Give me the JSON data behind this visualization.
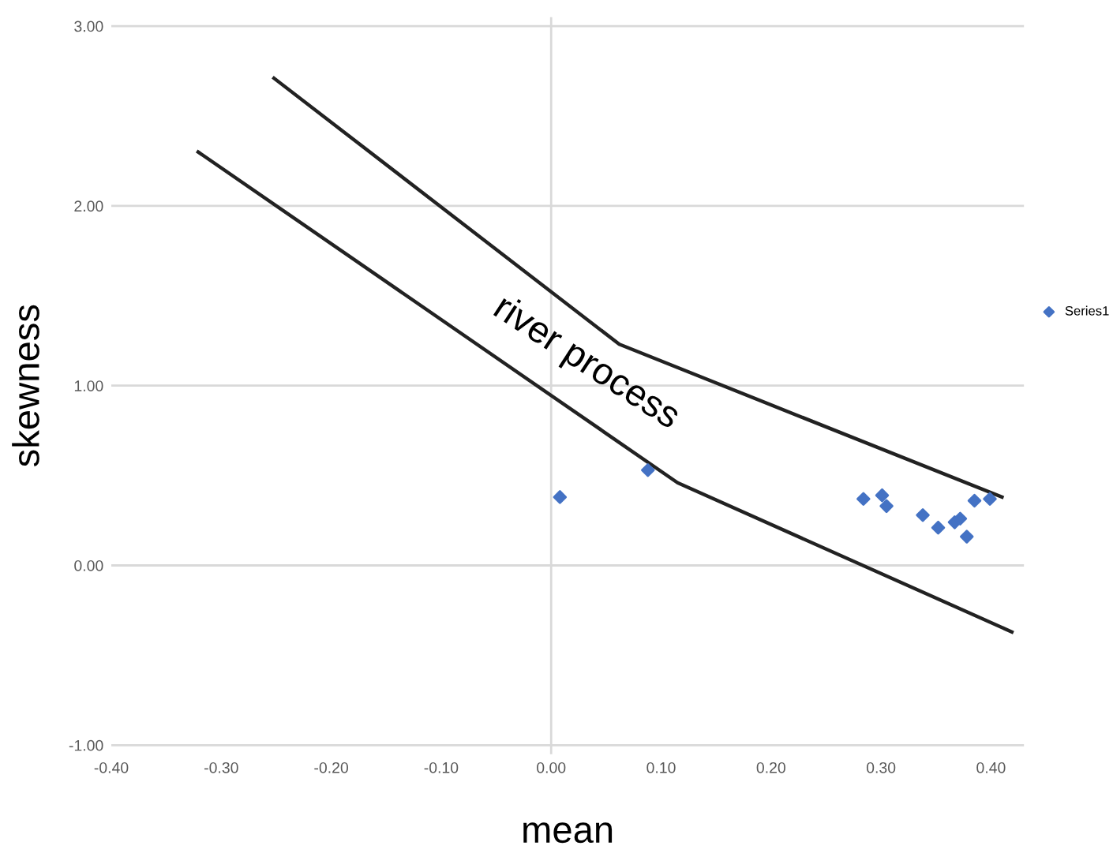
{
  "chart_data": {
    "type": "scatter",
    "xlabel": "mean",
    "ylabel": "skewness",
    "series": [
      {
        "name": "Series1",
        "color": "#4472c4",
        "marker": "diamond",
        "x": [
          0.008,
          0.088,
          0.284,
          0.301,
          0.305,
          0.338,
          0.352,
          0.367,
          0.372,
          0.378,
          0.385,
          0.399
        ],
        "values": [
          0.38,
          0.53,
          0.37,
          0.39,
          0.33,
          0.28,
          0.21,
          0.24,
          0.26,
          0.16,
          0.36,
          0.37
        ]
      },
      {
        "color": "#222222",
        "type": "line",
        "marker": "none",
        "x": [
          -0.252,
          0.062,
          0.41
        ],
        "values": [
          2.71,
          1.23,
          0.38
        ]
      },
      {
        "color": "#222222",
        "type": "line",
        "marker": "none",
        "x": [
          -0.321,
          0.115,
          0.419
        ],
        "values": [
          2.3,
          0.46,
          -0.37
        ]
      }
    ],
    "annotations": [
      "river process"
    ],
    "ref_lines": [
      {
        "axis": "x",
        "value": 0,
        "color": "#d9d9d9"
      }
    ],
    "xlim": [
      -0.4,
      0.43
    ],
    "ylim": [
      -1.05,
      3.05
    ],
    "xticks": [
      {
        "value": -0.4,
        "label": "-0.40"
      },
      {
        "value": -0.3,
        "label": "-0.30"
      },
      {
        "value": -0.2,
        "label": "-0.20"
      },
      {
        "value": -0.1,
        "label": "-0.10"
      },
      {
        "value": 0,
        "label": "0.00"
      },
      {
        "value": 0.1,
        "label": "0.10"
      },
      {
        "value": 0.2,
        "label": "0.20"
      },
      {
        "value": 0.3,
        "label": "0.30"
      },
      {
        "value": 0.4,
        "label": "0.40"
      }
    ],
    "yticks": [
      {
        "value": -1,
        "label": "-1.00"
      },
      {
        "value": 0,
        "label": "0.00"
      },
      {
        "value": 1,
        "label": "1.00"
      },
      {
        "value": 2,
        "label": "2.00"
      },
      {
        "value": 3,
        "label": "3.00"
      }
    ],
    "grid": "y",
    "legend": "right"
  }
}
